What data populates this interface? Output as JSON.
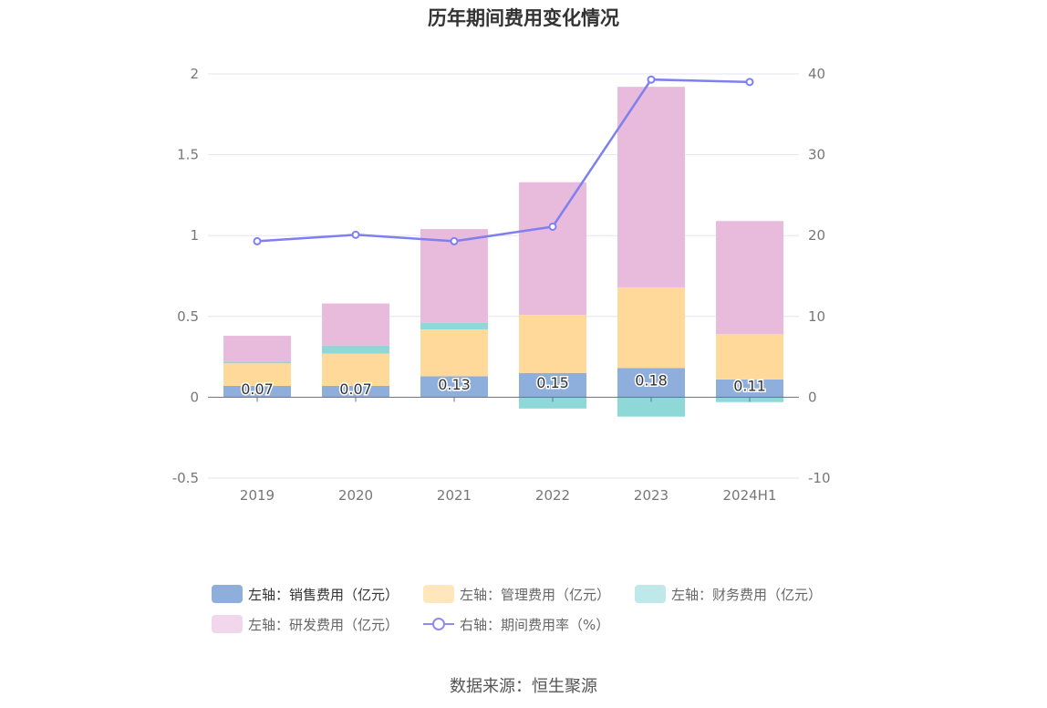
{
  "chart_data": {
    "type": "bar",
    "title": "历年期间费用变化情况",
    "categories": [
      "2019",
      "2020",
      "2021",
      "2022",
      "2023",
      "2024H1"
    ],
    "stacked": true,
    "y_left": {
      "ylim": [
        -0.5,
        2
      ],
      "ticks": [
        "-0.5",
        "0",
        "0.5",
        "1",
        "1.5",
        "2"
      ],
      "tick_values": [
        -0.5,
        0,
        0.5,
        1,
        1.5,
        2
      ]
    },
    "y_right": {
      "ylim": [
        -10,
        40
      ],
      "ticks": [
        "-10",
        "0",
        "10",
        "20",
        "30",
        "40"
      ],
      "tick_values": [
        -10,
        0,
        10,
        20,
        30,
        40
      ]
    },
    "series": [
      {
        "name": "左轴：销售费用（亿元）",
        "axis": "left",
        "type": "bar",
        "color": "#8eaedc",
        "values": [
          0.07,
          0.07,
          0.13,
          0.15,
          0.18,
          0.11
        ],
        "data_labels": [
          "0.07",
          "0.07",
          "0.13",
          "0.15",
          "0.18",
          "0.11"
        ]
      },
      {
        "name": "左轴：管理费用（亿元）",
        "axis": "left",
        "type": "bar",
        "color": "#ffd99a",
        "values": [
          0.14,
          0.2,
          0.29,
          0.36,
          0.5,
          0.28
        ]
      },
      {
        "name": "左轴：财务费用（亿元）",
        "axis": "left",
        "type": "bar",
        "color": "#8fd8d8",
        "values": [
          0.01,
          0.05,
          0.04,
          -0.07,
          -0.12,
          -0.03
        ]
      },
      {
        "name": "左轴：研发费用（亿元）",
        "axis": "left",
        "type": "bar",
        "color": "#e8badb",
        "values": [
          0.16,
          0.26,
          0.58,
          0.82,
          1.24,
          0.7
        ]
      },
      {
        "name": "右轴：期间费用率（%）",
        "axis": "right",
        "type": "line",
        "color": "#7f7ff0",
        "values": [
          19.3,
          20.1,
          19.3,
          21.1,
          39.3,
          39.0
        ]
      }
    ],
    "legend_position": "bottom",
    "grid": true
  },
  "legend": {
    "items": [
      {
        "label": "左轴：销售费用（亿元）",
        "color": "#8eaedc",
        "kind": "bar"
      },
      {
        "label": "左轴：管理费用（亿元）",
        "color": "#ffe6bd",
        "kind": "bar"
      },
      {
        "label": "左轴：财务费用（亿元）",
        "color": "#bfe8ea",
        "kind": "bar"
      },
      {
        "label": "左轴：研发费用（亿元）",
        "color": "#f2d6ec",
        "kind": "bar"
      },
      {
        "label": "右轴：期间费用率（%）",
        "color": "#8c8cf0",
        "kind": "line"
      }
    ]
  },
  "source": "数据来源：恒生聚源"
}
